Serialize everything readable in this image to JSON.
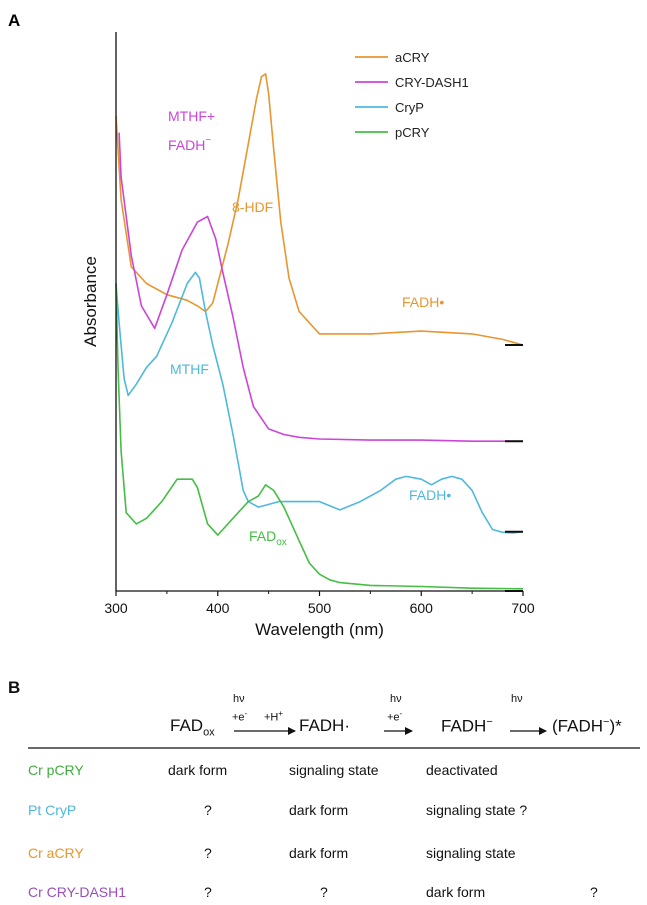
{
  "panel_a": {
    "letter": "A",
    "chart_data": {
      "type": "line",
      "xlabel": "Wavelength (nm)",
      "ylabel": "Absorbance",
      "xlim": [
        300,
        700
      ],
      "ylim": [
        0,
        1
      ],
      "xticks": [
        300,
        400,
        500,
        600,
        700
      ],
      "yticks_shown": false,
      "legend_position": "top-right",
      "series": [
        {
          "name": "aCRY",
          "color": "#E8962F",
          "baseline": 0.44,
          "x": [
            300,
            305,
            315,
            330,
            350,
            370,
            380,
            388,
            395,
            400,
            410,
            420,
            430,
            438,
            443,
            447,
            450,
            455,
            462,
            470,
            480,
            500,
            550,
            600,
            650,
            680,
            700
          ],
          "y": [
            0.85,
            0.7,
            0.58,
            0.55,
            0.53,
            0.52,
            0.51,
            0.5,
            0.515,
            0.55,
            0.62,
            0.7,
            0.8,
            0.88,
            0.92,
            0.925,
            0.89,
            0.79,
            0.66,
            0.56,
            0.5,
            0.46,
            0.46,
            0.465,
            0.46,
            0.45,
            0.44
          ]
        },
        {
          "name": "CRY-DASH1",
          "color": "#CC44D8",
          "baseline": 0.268,
          "x": [
            303,
            305,
            315,
            325,
            338,
            350,
            365,
            380,
            390,
            398,
            405,
            415,
            425,
            435,
            450,
            465,
            480,
            500,
            550,
            600,
            650,
            700
          ],
          "y": [
            0.82,
            0.74,
            0.6,
            0.51,
            0.47,
            0.53,
            0.61,
            0.66,
            0.67,
            0.63,
            0.57,
            0.49,
            0.4,
            0.33,
            0.29,
            0.28,
            0.275,
            0.272,
            0.27,
            0.27,
            0.268,
            0.268
          ]
        },
        {
          "name": "CryP",
          "color": "#4FB8DD",
          "baseline": 0.106,
          "x": [
            300,
            303,
            308,
            312,
            320,
            330,
            340,
            355,
            370,
            378,
            382,
            388,
            395,
            405,
            415,
            425,
            430,
            440,
            460,
            480,
            500,
            520,
            540,
            560,
            575,
            585,
            600,
            610,
            620,
            630,
            640,
            650,
            660,
            670,
            680,
            690,
            700
          ],
          "y": [
            0.55,
            0.48,
            0.38,
            0.35,
            0.37,
            0.4,
            0.42,
            0.48,
            0.55,
            0.57,
            0.56,
            0.5,
            0.44,
            0.37,
            0.28,
            0.18,
            0.16,
            0.15,
            0.16,
            0.16,
            0.16,
            0.145,
            0.16,
            0.18,
            0.2,
            0.205,
            0.2,
            0.19,
            0.2,
            0.205,
            0.2,
            0.18,
            0.14,
            0.11,
            0.105,
            0.104,
            0.106
          ]
        },
        {
          "name": "pCRY",
          "color": "#45BE45",
          "baseline": 0.0,
          "x": [
            300,
            302,
            305,
            310,
            320,
            330,
            345,
            360,
            375,
            380,
            390,
            400,
            405,
            420,
            430,
            440,
            447,
            455,
            465,
            480,
            490,
            500,
            510,
            520,
            550,
            600,
            650,
            700
          ],
          "y": [
            0.55,
            0.4,
            0.25,
            0.14,
            0.12,
            0.13,
            0.16,
            0.2,
            0.2,
            0.185,
            0.12,
            0.1,
            0.11,
            0.14,
            0.16,
            0.17,
            0.19,
            0.18,
            0.15,
            0.09,
            0.05,
            0.03,
            0.02,
            0.015,
            0.01,
            0.008,
            0.005,
            0.004
          ]
        }
      ],
      "annotations": [
        {
          "text": "MTHF+",
          "series": "CRY-DASH1"
        },
        {
          "text": "FADH",
          "superscript": "−",
          "series": "CRY-DASH1"
        },
        {
          "text": "8-HDF",
          "series": "aCRY"
        },
        {
          "text": "FADH•",
          "series": "aCRY"
        },
        {
          "text": "MTHF",
          "series": "CryP"
        },
        {
          "text": "FADH•",
          "series": "CryP"
        },
        {
          "text": "FAD",
          "subscript": "ox",
          "series": "pCRY"
        }
      ]
    }
  },
  "panel_b": {
    "letter": "B",
    "states": {
      "s1": {
        "base": "FAD",
        "sub": "ox"
      },
      "s2": "FADH·",
      "s3": {
        "base": "FADH",
        "sup": "−"
      },
      "s4": {
        "pre": "(FADH",
        "sup": "−",
        "post": ")*"
      }
    },
    "arrows": {
      "a1": {
        "top": "hν",
        "l1": "+e",
        "l1sup": "-",
        "l2": "+H",
        "l2sup": "+"
      },
      "a2": {
        "top": "hν",
        "l1": "+e",
        "l1sup": "-"
      },
      "a3": {
        "top": "hν"
      }
    },
    "rows": [
      {
        "organism": "Cr pCRY",
        "color": "#3DAE3D",
        "cells": [
          "dark form",
          "signaling state",
          "deactivated",
          ""
        ]
      },
      {
        "organism": "Pt CryP",
        "color": "#4FB8DD",
        "cells": [
          "?",
          "dark form",
          "signaling state ?",
          ""
        ]
      },
      {
        "organism": "Cr aCRY",
        "color": "#E8962F",
        "cells": [
          "?",
          "dark form",
          "signaling state",
          ""
        ]
      },
      {
        "organism": "Cr CRY-DASH1",
        "color": "#9A4FB8",
        "cells": [
          "?",
          "?",
          "dark form",
          "?"
        ]
      }
    ]
  }
}
